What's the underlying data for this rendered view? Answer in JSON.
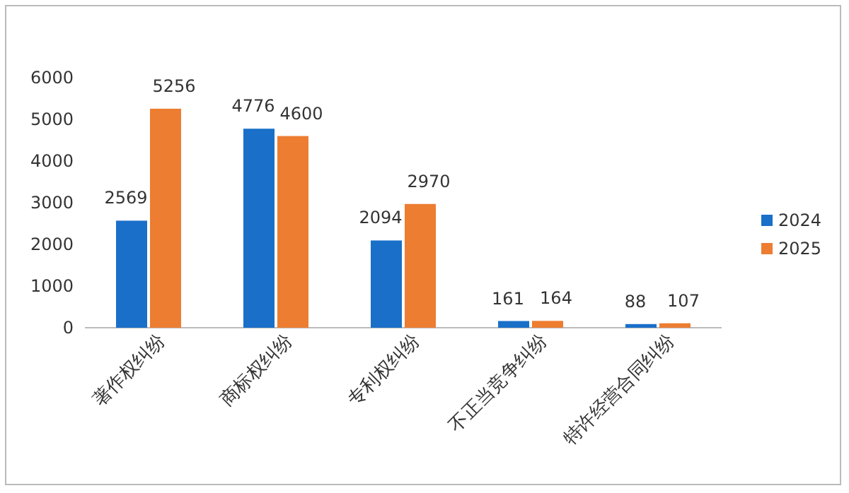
{
  "chart_data": {
    "type": "bar",
    "categories": [
      "著作权纠纷",
      "商标权纠纷",
      "专利权纠纷",
      "不正当竞争纠纷",
      "特许经营合同纠纷"
    ],
    "series": [
      {
        "name": "2024",
        "color": "#1a6fc9",
        "values": [
          2569,
          4776,
          2094,
          161,
          88
        ]
      },
      {
        "name": "2025",
        "color": "#ed7d31",
        "values": [
          5256,
          4600,
          2970,
          164,
          107
        ]
      }
    ],
    "ylim": [
      0,
      6000
    ],
    "yticks": [
      0,
      1000,
      2000,
      3000,
      4000,
      5000,
      6000
    ],
    "data_labels": true,
    "legend": "right",
    "grid": false
  }
}
